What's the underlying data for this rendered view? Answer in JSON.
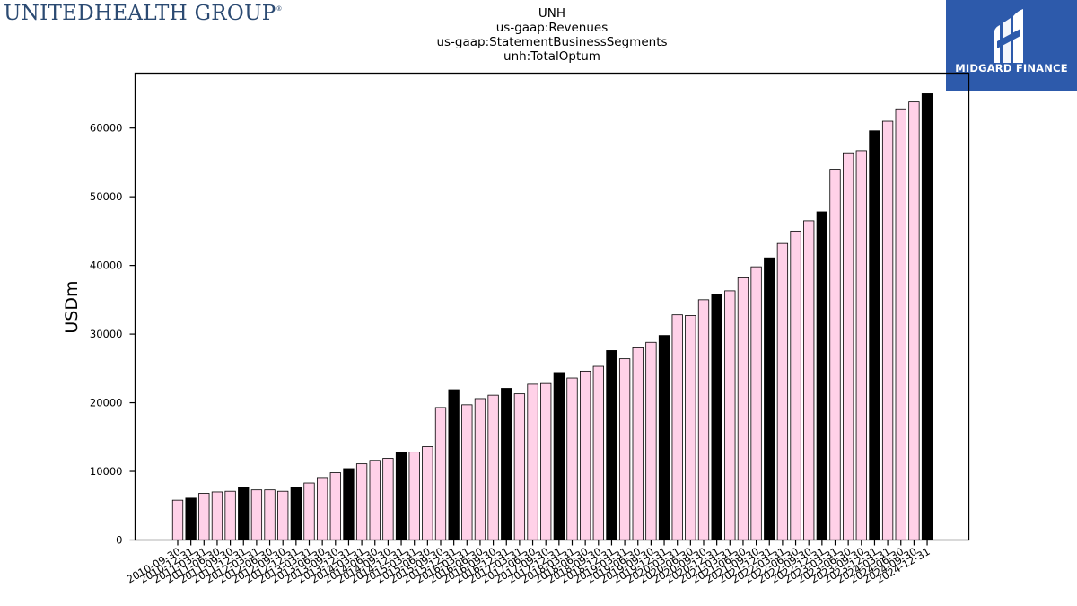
{
  "header": {
    "company_logo_text": "UNITEDHEALTH GROUP",
    "company_logo_mark": "®",
    "brand_name": "MIDGARD FINANCE"
  },
  "colors": {
    "bar_default": "#ffd1e8",
    "bar_highlight": "#000000",
    "brand_bg": "#2d5aab",
    "logo_text": "#2b4a72"
  },
  "chart_data": {
    "type": "bar",
    "title_lines": [
      "UNH",
      "us-gaap:Revenues",
      "us-gaap:StatementBusinessSegments",
      "unh:TotalOptum"
    ],
    "xlabel": "",
    "ylabel": "USDm",
    "ylim": [
      0,
      68000
    ],
    "yticks": [
      0,
      10000,
      20000,
      30000,
      40000,
      50000,
      60000
    ],
    "grid": false,
    "categories": [
      "2010-09-30",
      "2010-12-31",
      "2011-03-31",
      "2011-06-30",
      "2011-09-30",
      "2011-12-31",
      "2012-03-31",
      "2012-06-30",
      "2012-09-30",
      "2012-12-31",
      "2013-03-31",
      "2013-06-30",
      "2013-09-30",
      "2013-12-31",
      "2014-03-31",
      "2014-06-30",
      "2014-09-30",
      "2014-12-31",
      "2015-03-31",
      "2015-06-30",
      "2015-09-30",
      "2015-12-31",
      "2016-03-31",
      "2016-06-30",
      "2016-09-30",
      "2016-12-31",
      "2017-03-31",
      "2017-06-30",
      "2017-09-30",
      "2017-12-31",
      "2018-03-31",
      "2018-06-30",
      "2018-09-30",
      "2018-12-31",
      "2019-03-31",
      "2019-06-30",
      "2019-09-30",
      "2019-12-31",
      "2020-03-31",
      "2020-06-30",
      "2020-09-30",
      "2020-12-31",
      "2021-03-31",
      "2021-06-30",
      "2021-09-30",
      "2021-12-31",
      "2022-03-31",
      "2022-06-30",
      "2022-09-30",
      "2022-12-31",
      "2023-03-31",
      "2023-06-30",
      "2023-09-30",
      "2023-12-31",
      "2024-03-31",
      "2024-06-30",
      "2024-09-30",
      "2024-12-31"
    ],
    "values": [
      5800,
      6100,
      6800,
      7000,
      7100,
      7600,
      7300,
      7300,
      7100,
      7600,
      8300,
      9100,
      9800,
      10400,
      11100,
      11600,
      11900,
      12800,
      12800,
      13600,
      19300,
      21900,
      19700,
      20600,
      21100,
      22100,
      21300,
      22700,
      22800,
      24400,
      23600,
      24600,
      25300,
      27600,
      26400,
      28000,
      28800,
      29800,
      32800,
      32700,
      35000,
      35800,
      36300,
      38200,
      39800,
      41100,
      43200,
      45000,
      46500,
      47800,
      54000,
      56400,
      56700,
      59600,
      61000,
      62800,
      63800,
      65000
    ],
    "highlight": [
      false,
      true,
      false,
      false,
      false,
      true,
      false,
      false,
      false,
      true,
      false,
      false,
      false,
      true,
      false,
      false,
      false,
      true,
      false,
      false,
      false,
      true,
      false,
      false,
      false,
      true,
      false,
      false,
      false,
      true,
      false,
      false,
      false,
      true,
      false,
      false,
      false,
      true,
      false,
      false,
      false,
      true,
      false,
      false,
      false,
      true,
      false,
      false,
      false,
      true,
      false,
      false,
      false,
      true,
      false,
      false,
      false,
      true
    ]
  }
}
